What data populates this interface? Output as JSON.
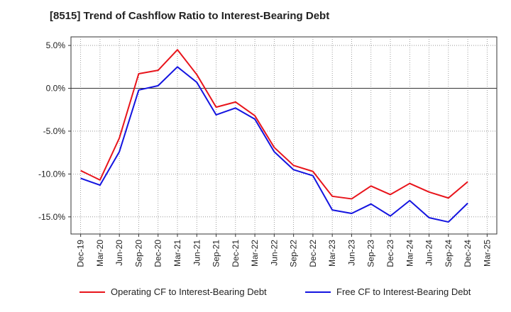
{
  "chart_data": {
    "type": "line",
    "title": "[8515]  Trend of Cashflow Ratio to Interest-Bearing Debt",
    "xlabel": "",
    "ylabel": "",
    "categories": [
      "Dec-19",
      "Mar-20",
      "Jun-20",
      "Sep-20",
      "Dec-20",
      "Mar-21",
      "Jun-21",
      "Sep-21",
      "Dec-21",
      "Mar-22",
      "Jun-22",
      "Sep-22",
      "Dec-22",
      "Mar-23",
      "Jun-23",
      "Sep-23",
      "Dec-23",
      "Mar-24",
      "Jun-24",
      "Sep-24",
      "Dec-24",
      "Mar-25"
    ],
    "ylim": [
      -17,
      6
    ],
    "yticks": [
      5,
      0,
      -5,
      -10,
      -15
    ],
    "ytick_labels": [
      "5.0%",
      "0.0%",
      "-5.0%",
      "-10.0%",
      "-15.0%"
    ],
    "grid": true,
    "legend_position": "bottom",
    "series": [
      {
        "name": "Operating CF to Interest-Bearing Debt",
        "color": "#e8141b",
        "values": [
          -9.6,
          -10.7,
          -5.8,
          1.7,
          2.1,
          4.5,
          1.6,
          -2.2,
          -1.6,
          -3.2,
          -6.9,
          -9.0,
          -9.7,
          -12.6,
          -12.9,
          -11.4,
          -12.4,
          -11.1,
          -12.1,
          -12.8,
          -10.9,
          null
        ]
      },
      {
        "name": "Free CF to Interest-Bearing Debt",
        "color": "#1414e0",
        "values": [
          -10.5,
          -11.3,
          -7.4,
          -0.2,
          0.3,
          2.5,
          0.7,
          -3.1,
          -2.3,
          -3.6,
          -7.4,
          -9.5,
          -10.2,
          -14.2,
          -14.6,
          -13.5,
          -14.9,
          -13.1,
          -15.1,
          -15.6,
          -13.4,
          null
        ]
      }
    ]
  }
}
